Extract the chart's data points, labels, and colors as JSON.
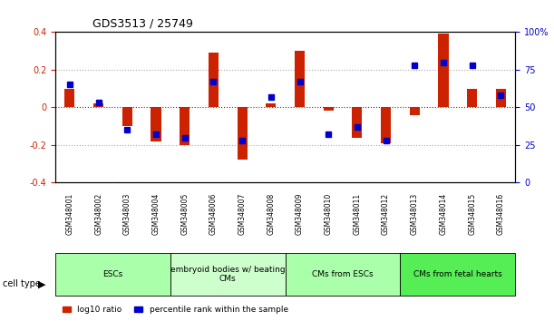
{
  "title": "GDS3513 / 25749",
  "samples": [
    "GSM348001",
    "GSM348002",
    "GSM348003",
    "GSM348004",
    "GSM348005",
    "GSM348006",
    "GSM348007",
    "GSM348008",
    "GSM348009",
    "GSM348010",
    "GSM348011",
    "GSM348012",
    "GSM348013",
    "GSM348014",
    "GSM348015",
    "GSM348016"
  ],
  "log10_ratio": [
    0.1,
    0.02,
    -0.1,
    -0.18,
    -0.2,
    0.29,
    -0.28,
    0.02,
    0.3,
    -0.02,
    -0.16,
    -0.19,
    -0.04,
    0.39,
    0.1,
    0.1
  ],
  "percentile_rank": [
    65,
    53,
    35,
    32,
    30,
    67,
    28,
    57,
    67,
    32,
    37,
    28,
    78,
    80,
    78,
    58
  ],
  "cell_types": [
    {
      "label": "ESCs",
      "start": 0,
      "end": 4,
      "color": "#aaffaa"
    },
    {
      "label": "embryoid bodies w/ beating\nCMs",
      "start": 4,
      "end": 8,
      "color": "#ccffcc"
    },
    {
      "label": "CMs from ESCs",
      "start": 8,
      "end": 12,
      "color": "#aaffaa"
    },
    {
      "label": "CMs from fetal hearts",
      "start": 12,
      "end": 16,
      "color": "#55ee55"
    }
  ],
  "ylim_left": [
    -0.4,
    0.4
  ],
  "ylim_right": [
    0,
    100
  ],
  "yticks_left": [
    -0.4,
    -0.2,
    0,
    0.2,
    0.4
  ],
  "yticks_right": [
    0,
    25,
    50,
    75,
    100
  ],
  "ytick_labels_right": [
    "0",
    "25",
    "50",
    "75",
    "100%"
  ],
  "bar_color": "#cc2200",
  "dot_color": "#0000cc",
  "grid_color": "#aaaaaa",
  "zero_line_color": "#cc0000",
  "bg_color": "#ffffff",
  "left_label_color": "#cc2200",
  "right_label_color": "#0000cc"
}
